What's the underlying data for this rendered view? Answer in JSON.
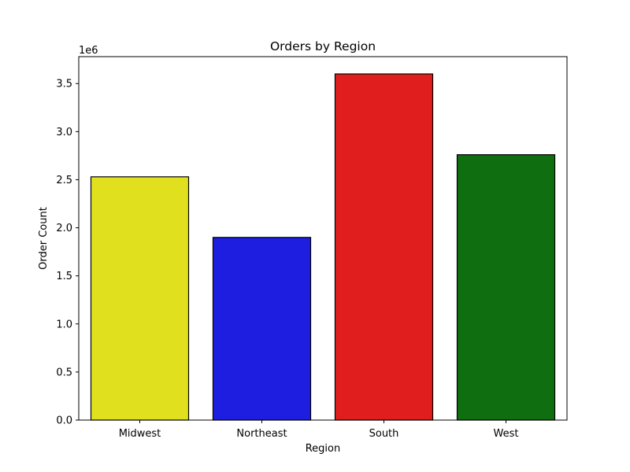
{
  "chart_data": {
    "type": "bar",
    "title": "Orders by Region",
    "xlabel": "Region",
    "ylabel": "Order Count",
    "y_scale_label": "1e6",
    "categories": [
      "Midwest",
      "Northeast",
      "South",
      "West"
    ],
    "values": [
      2530000,
      1900000,
      3600000,
      2760000
    ],
    "colors": [
      "#e1e01e",
      "#1e1ee1",
      "#e11e1e",
      "#0f6e0f"
    ],
    "ylim": [
      0,
      3780000
    ],
    "yticks": [
      0,
      500000,
      1000000,
      1500000,
      2000000,
      2500000,
      3000000,
      3500000
    ],
    "ytick_labels": [
      "0.0",
      "0.5",
      "1.0",
      "1.5",
      "2.0",
      "2.5",
      "3.0",
      "3.5"
    ],
    "grid": false,
    "legend": "none"
  }
}
